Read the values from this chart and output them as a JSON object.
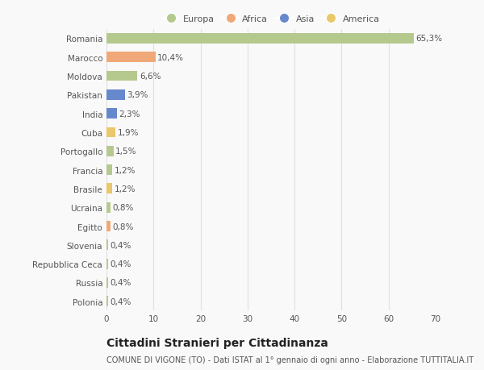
{
  "categories": [
    "Polonia",
    "Russia",
    "Repubblica Ceca",
    "Slovenia",
    "Egitto",
    "Ucraina",
    "Brasile",
    "Francia",
    "Portogallo",
    "Cuba",
    "India",
    "Pakistan",
    "Moldova",
    "Marocco",
    "Romania"
  ],
  "values": [
    0.4,
    0.4,
    0.4,
    0.4,
    0.8,
    0.8,
    1.2,
    1.2,
    1.5,
    1.9,
    2.3,
    3.9,
    6.6,
    10.4,
    65.3
  ],
  "labels": [
    "0,4%",
    "0,4%",
    "0,4%",
    "0,4%",
    "0,8%",
    "0,8%",
    "1,2%",
    "1,2%",
    "1,5%",
    "1,9%",
    "2,3%",
    "3,9%",
    "6,6%",
    "10,4%",
    "65,3%"
  ],
  "colors": [
    "#b5c98e",
    "#b5c98e",
    "#b5c98e",
    "#b5c98e",
    "#f0a878",
    "#b5c98e",
    "#e8c86a",
    "#b5c98e",
    "#b5c98e",
    "#e8c86a",
    "#6688cc",
    "#6688cc",
    "#b5c98e",
    "#f0a878",
    "#b5c98e"
  ],
  "legend_labels": [
    "Europa",
    "Africa",
    "Asia",
    "America"
  ],
  "legend_colors": [
    "#b5c98e",
    "#f0a878",
    "#6688cc",
    "#e8c86a"
  ],
  "title": "Cittadini Stranieri per Cittadinanza",
  "subtitle": "COMUNE DI VIGONE (TO) - Dati ISTAT al 1° gennaio di ogni anno - Elaborazione TUTTITALIA.IT",
  "xlim": [
    0,
    70
  ],
  "xticks": [
    0,
    10,
    20,
    30,
    40,
    50,
    60,
    70
  ],
  "background_color": "#f9f9f9",
  "grid_color": "#e0e0e0",
  "bar_height": 0.55,
  "label_fontsize": 7.5,
  "ytick_fontsize": 7.5,
  "xtick_fontsize": 7.5,
  "title_fontsize": 10,
  "subtitle_fontsize": 7,
  "legend_fontsize": 8
}
